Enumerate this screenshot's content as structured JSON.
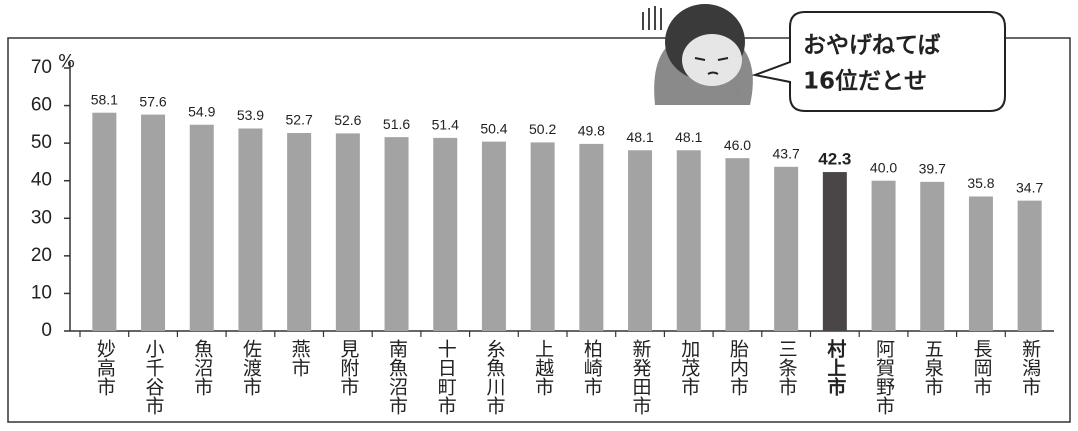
{
  "chart_data": {
    "type": "bar",
    "y_label": "%",
    "categories": [
      "妙高市",
      "小千谷市",
      "魚沼市",
      "佐渡市",
      "燕市",
      "見附市",
      "南魚沼市",
      "十日町市",
      "糸魚川市",
      "上越市",
      "柏崎市",
      "新発田市",
      "加茂市",
      "胎内市",
      "三条市",
      "村上市",
      "阿賀野市",
      "五泉市",
      "長岡市",
      "新潟市"
    ],
    "values": [
      58.1,
      57.6,
      54.9,
      53.9,
      52.7,
      52.6,
      51.6,
      51.4,
      50.4,
      50.2,
      49.8,
      48.1,
      48.1,
      46.0,
      43.7,
      42.3,
      40.0,
      39.7,
      35.8,
      34.7
    ],
    "value_labels": [
      "58.1",
      "57.6",
      "54.9",
      "53.9",
      "52.7",
      "52.6",
      "51.6",
      "51.4",
      "50.4",
      "50.2",
      "49.8",
      "48.1",
      "48.1",
      "46.0",
      "43.7",
      "42.3",
      "40.0",
      "39.7",
      "35.8",
      "34.7"
    ],
    "color": "#a3a3a3",
    "colors": [
      "#a3a3a3",
      "#a3a3a3",
      "#a3a3a3",
      "#a3a3a3",
      "#a3a3a3",
      "#a3a3a3",
      "#a3a3a3",
      "#a3a3a3",
      "#a3a3a3",
      "#a3a3a3",
      "#a3a3a3",
      "#a3a3a3",
      "#a3a3a3",
      "#a3a3a3",
      "#a3a3a3",
      "#4a4546",
      "#a3a3a3",
      "#a3a3a3",
      "#a3a3a3",
      "#a3a3a3"
    ],
    "ylim": [
      0,
      70
    ],
    "yticks": [
      0,
      10,
      20,
      30,
      40,
      50,
      60,
      70
    ],
    "grid": false,
    "annotation": [
      "おやげねてば",
      "16位だとせ"
    ]
  }
}
